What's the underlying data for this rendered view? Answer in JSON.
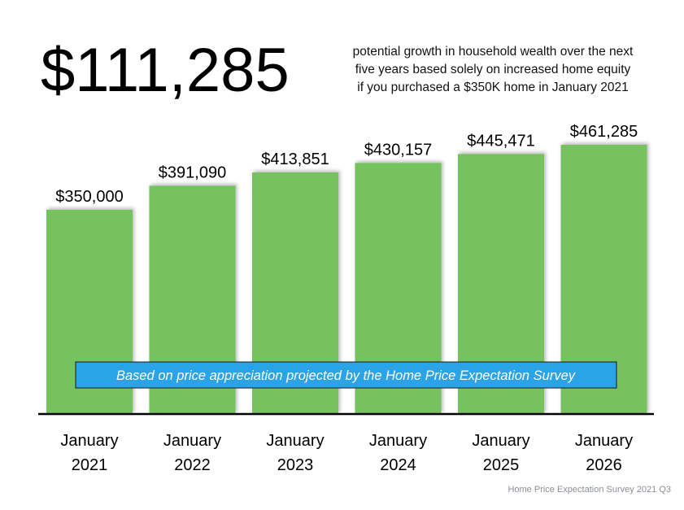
{
  "header": {
    "headline": "$111,285",
    "subtext_lines": [
      "potential growth in household wealth over the next",
      "five years based solely on increased home equity",
      "if you purchased a $350K home in January 2021"
    ]
  },
  "banner": {
    "text": "Based on price appreciation projected by the Home Price Expectation Survey"
  },
  "source": "Home Price Expectation Survey 2021 Q3",
  "colors": {
    "bar": "#74c25f",
    "banner_fill": "#2aa3e7",
    "banner_text": "#ffffff",
    "axis": "#000000"
  },
  "chart_data": {
    "type": "bar",
    "title": "",
    "xlabel": "",
    "ylabel": "",
    "categories": [
      [
        "January",
        "2021"
      ],
      [
        "January",
        "2022"
      ],
      [
        "January",
        "2023"
      ],
      [
        "January",
        "2024"
      ],
      [
        "January",
        "2025"
      ],
      [
        "January",
        "2026"
      ]
    ],
    "values": [
      350000,
      391090,
      413851,
      430157,
      445471,
      461285
    ],
    "data_labels": [
      "$350,000",
      "$391,090",
      "$413,851",
      "$430,157",
      "$445,471",
      "$461,285"
    ],
    "grid": false,
    "legend": "none"
  }
}
